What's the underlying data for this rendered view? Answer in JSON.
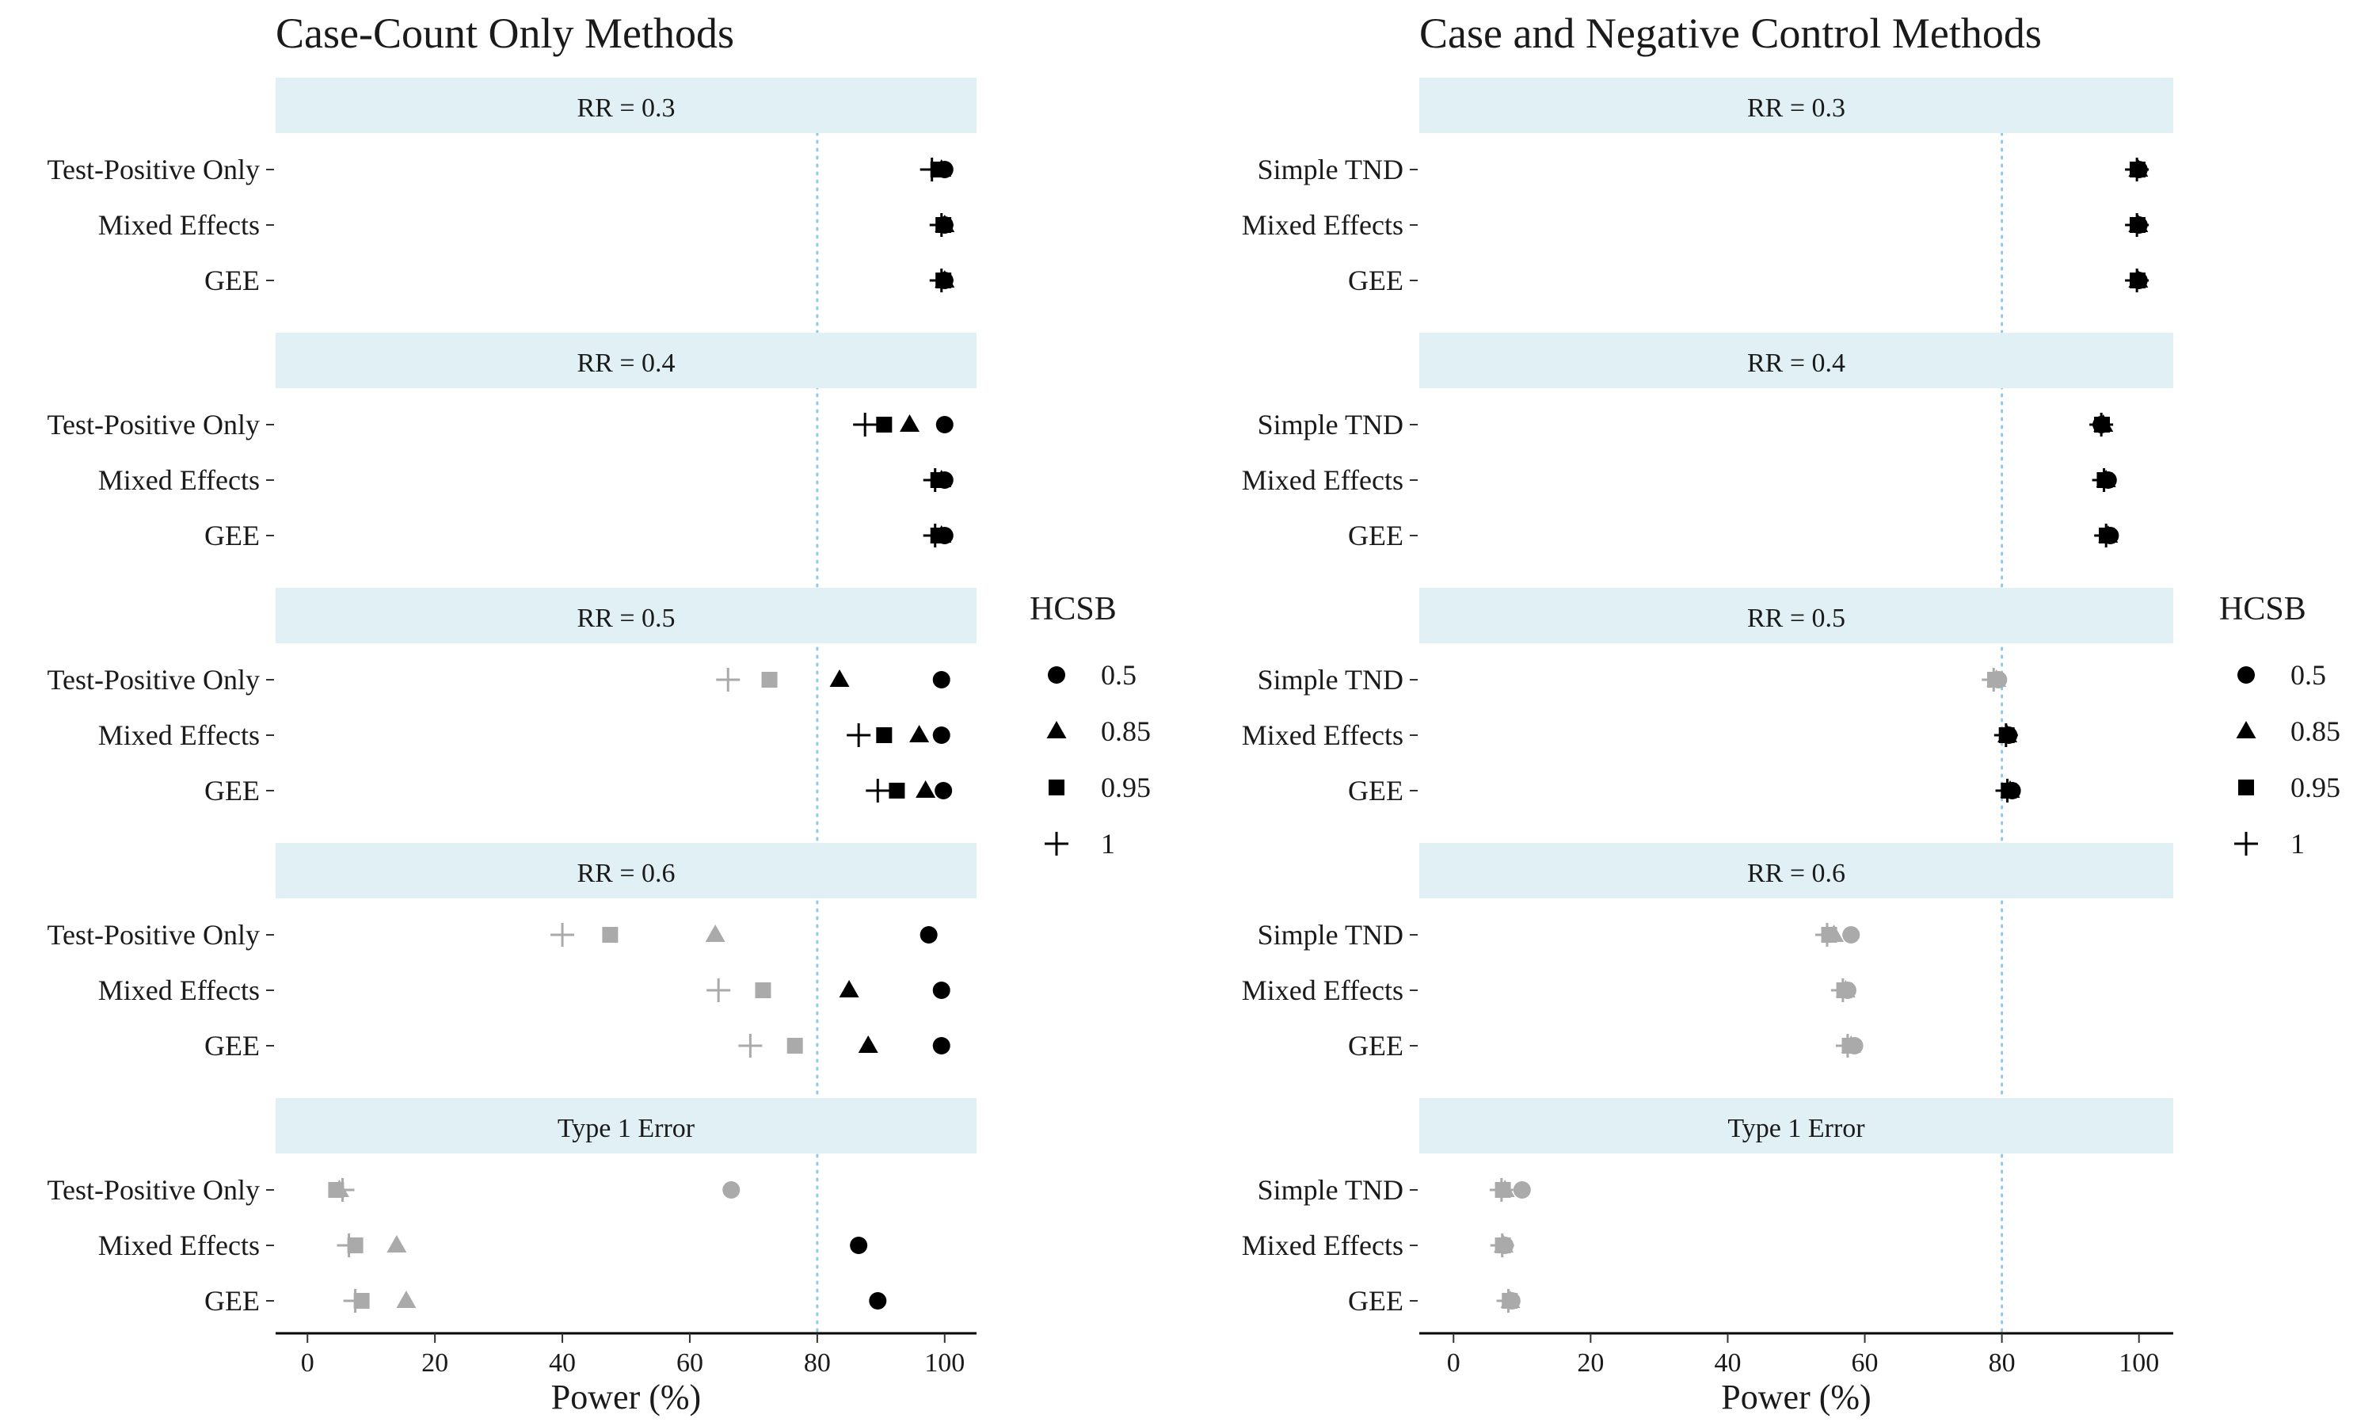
{
  "colors": {
    "significant": "#000000",
    "not_significant": "#aaaaaa",
    "strip_fill": "#e0f0f5",
    "reference_line": "#8ecae6"
  },
  "legend": {
    "title": "HCSB",
    "entries": [
      {
        "label": "0.5",
        "shape": "circle"
      },
      {
        "label": "0.85",
        "shape": "triangle"
      },
      {
        "label": "0.95",
        "shape": "square"
      },
      {
        "label": "1",
        "shape": "plus"
      }
    ]
  },
  "chart_data": [
    {
      "type": "scatter",
      "title": "Case-Count Only Methods",
      "xlabel": "Power (%)",
      "xlim": [
        -5,
        105
      ],
      "xticks": [
        0,
        20,
        40,
        60,
        80,
        100
      ],
      "reference_x": 80,
      "series_names": [
        "0.5",
        "0.85",
        "0.95",
        "1"
      ],
      "methods": [
        "Test-Positive Only",
        "Mixed Effects",
        "GEE"
      ],
      "panels": [
        {
          "label": "RR = 0.3",
          "rows": [
            {
              "method": "Test-Positive Only",
              "values": [
                100,
                99.5,
                99,
                98
              ],
              "significant": [
                true,
                true,
                true,
                true
              ]
            },
            {
              "method": "Mixed Effects",
              "values": [
                100,
                100,
                99.8,
                99.5
              ],
              "significant": [
                true,
                true,
                true,
                true
              ]
            },
            {
              "method": "GEE",
              "values": [
                100,
                100,
                99.8,
                99.5
              ],
              "significant": [
                true,
                true,
                true,
                true
              ]
            }
          ]
        },
        {
          "label": "RR = 0.4",
          "rows": [
            {
              "method": "Test-Positive Only",
              "values": [
                100,
                94.5,
                90.5,
                87.5
              ],
              "significant": [
                true,
                true,
                true,
                true
              ]
            },
            {
              "method": "Mixed Effects",
              "values": [
                100,
                99.5,
                99,
                98.5
              ],
              "significant": [
                true,
                true,
                true,
                true
              ]
            },
            {
              "method": "GEE",
              "values": [
                100,
                99.5,
                99,
                98.5
              ],
              "significant": [
                true,
                true,
                true,
                true
              ]
            }
          ]
        },
        {
          "label": "RR = 0.5",
          "rows": [
            {
              "method": "Test-Positive Only",
              "values": [
                99.5,
                83.5,
                72.5,
                66
              ],
              "significant": [
                true,
                true,
                false,
                false
              ]
            },
            {
              "method": "Mixed Effects",
              "values": [
                99.5,
                96,
                90.5,
                86.5
              ],
              "significant": [
                true,
                true,
                true,
                true
              ]
            },
            {
              "method": "GEE",
              "values": [
                99.8,
                97,
                92.5,
                89.5
              ],
              "significant": [
                true,
                true,
                true,
                true
              ]
            }
          ]
        },
        {
          "label": "RR = 0.6",
          "rows": [
            {
              "method": "Test-Positive Only",
              "values": [
                97.5,
                64,
                47.5,
                40
              ],
              "significant": [
                true,
                false,
                false,
                false
              ]
            },
            {
              "method": "Mixed Effects",
              "values": [
                99.5,
                85,
                71.5,
                64.5
              ],
              "significant": [
                true,
                true,
                false,
                false
              ]
            },
            {
              "method": "GEE",
              "values": [
                99.5,
                88,
                76.5,
                69.5
              ],
              "significant": [
                true,
                true,
                false,
                false
              ]
            }
          ]
        },
        {
          "label": "Type 1 Error",
          "rows": [
            {
              "method": "Test-Positive Only",
              "values": [
                66.5,
                5,
                4.5,
                5.5
              ],
              "significant": [
                false,
                false,
                false,
                false
              ]
            },
            {
              "method": "Mixed Effects",
              "values": [
                86.5,
                14,
                7.5,
                6.5
              ],
              "significant": [
                true,
                false,
                false,
                false
              ]
            },
            {
              "method": "GEE",
              "values": [
                89.5,
                15.5,
                8.5,
                7.5
              ],
              "significant": [
                true,
                false,
                false,
                false
              ]
            }
          ]
        }
      ]
    },
    {
      "type": "scatter",
      "title": "Case and Negative Control Methods",
      "xlabel": "Power (%)",
      "xlim": [
        -5,
        105
      ],
      "xticks": [
        0,
        20,
        40,
        60,
        80,
        100
      ],
      "reference_x": 80,
      "series_names": [
        "0.5",
        "0.85",
        "0.95",
        "1"
      ],
      "methods": [
        "Simple TND",
        "Mixed Effects",
        "GEE"
      ],
      "panels": [
        {
          "label": "RR = 0.3",
          "rows": [
            {
              "method": "Simple TND",
              "values": [
                100,
                99.9,
                99.8,
                99.7
              ],
              "significant": [
                true,
                true,
                true,
                true
              ]
            },
            {
              "method": "Mixed Effects",
              "values": [
                100,
                99.9,
                99.8,
                99.7
              ],
              "significant": [
                true,
                true,
                true,
                true
              ]
            },
            {
              "method": "GEE",
              "values": [
                100,
                99.9,
                99.8,
                99.7
              ],
              "significant": [
                true,
                true,
                true,
                true
              ]
            }
          ]
        },
        {
          "label": "RR = 0.4",
          "rows": [
            {
              "method": "Simple TND",
              "values": [
                94.5,
                94.8,
                94.6,
                94.5
              ],
              "significant": [
                true,
                true,
                true,
                true
              ]
            },
            {
              "method": "Mixed Effects",
              "values": [
                95.5,
                95.2,
                95,
                94.9
              ],
              "significant": [
                true,
                true,
                true,
                true
              ]
            },
            {
              "method": "GEE",
              "values": [
                95.8,
                95.5,
                95.3,
                95.2
              ],
              "significant": [
                true,
                true,
                true,
                true
              ]
            }
          ]
        },
        {
          "label": "RR = 0.5",
          "rows": [
            {
              "method": "Simple TND",
              "values": [
                79.5,
                79.2,
                79,
                78.8
              ],
              "significant": [
                false,
                false,
                false,
                false
              ]
            },
            {
              "method": "Mixed Effects",
              "values": [
                81,
                80.8,
                80.7,
                80.6
              ],
              "significant": [
                true,
                true,
                true,
                true
              ]
            },
            {
              "method": "GEE",
              "values": [
                81.5,
                81.2,
                81,
                80.8
              ],
              "significant": [
                true,
                true,
                true,
                true
              ]
            }
          ]
        },
        {
          "label": "RR = 0.6",
          "rows": [
            {
              "method": "Simple TND",
              "values": [
                58,
                55.5,
                54.8,
                54.5
              ],
              "significant": [
                false,
                false,
                false,
                false
              ]
            },
            {
              "method": "Mixed Effects",
              "values": [
                57.5,
                57.2,
                57,
                56.8
              ],
              "significant": [
                false,
                false,
                false,
                false
              ]
            },
            {
              "method": "GEE",
              "values": [
                58.5,
                58,
                57.8,
                57.5
              ],
              "significant": [
                false,
                false,
                false,
                false
              ]
            }
          ]
        },
        {
          "label": "Type 1 Error",
          "rows": [
            {
              "method": "Simple TND",
              "values": [
                10,
                7.5,
                7.2,
                7
              ],
              "significant": [
                false,
                false,
                false,
                false
              ]
            },
            {
              "method": "Mixed Effects",
              "values": [
                7.5,
                7.3,
                7.2,
                7.1
              ],
              "significant": [
                false,
                false,
                false,
                false
              ]
            },
            {
              "method": "GEE",
              "values": [
                8.5,
                8.3,
                8.2,
                8
              ],
              "significant": [
                false,
                false,
                false,
                false
              ]
            }
          ]
        }
      ]
    }
  ]
}
